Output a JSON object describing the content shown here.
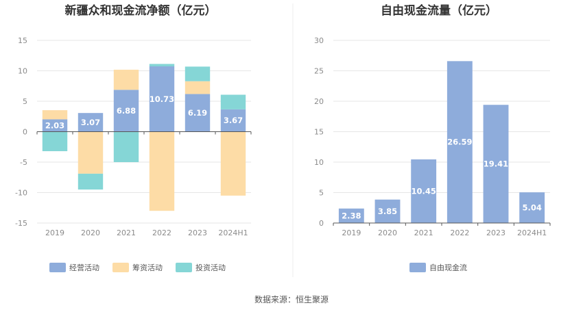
{
  "source": "数据来源：恒生聚源",
  "chart_data": [
    {
      "type": "bar",
      "stacked": true,
      "title": "新疆众和现金流净额（亿元）",
      "categories": [
        "2019",
        "2020",
        "2021",
        "2022",
        "2023",
        "2024H1"
      ],
      "ylim": [
        -15,
        15
      ],
      "yticks": [
        15,
        10,
        5,
        0,
        -5,
        -10,
        -15
      ],
      "legend_position": "bottom",
      "colors": {
        "经营活动": "#8eacdb",
        "筹资活动": "#fddca6",
        "投资活动": "#85d6d6"
      },
      "series": [
        {
          "name": "经营活动",
          "values": [
            2.03,
            3.07,
            6.88,
            10.73,
            6.19,
            3.67
          ],
          "labels": [
            "2.03",
            "3.07",
            "6.88",
            "10.73",
            "6.19",
            "3.67"
          ]
        },
        {
          "name": "筹资活动",
          "values": [
            1.5,
            -6.9,
            3.3,
            -13.0,
            2.1,
            -10.5
          ]
        },
        {
          "name": "投资活动",
          "values": [
            -3.2,
            -2.6,
            -5.0,
            0.4,
            2.4,
            2.4
          ]
        }
      ]
    },
    {
      "type": "bar",
      "title": "自由现金流量（亿元）",
      "categories": [
        "2019",
        "2020",
        "2021",
        "2022",
        "2023",
        "2024H1"
      ],
      "ylim": [
        0,
        30
      ],
      "yticks": [
        30,
        25,
        20,
        15,
        10,
        5,
        0
      ],
      "legend_position": "bottom",
      "colors": {
        "自由现金流": "#8eacdb"
      },
      "series": [
        {
          "name": "自由现金流",
          "values": [
            2.38,
            3.85,
            10.45,
            26.59,
            19.41,
            5.04
          ],
          "labels": [
            "2.38",
            "3.85",
            "10.45",
            "26.59",
            "19.41",
            "5.04"
          ]
        }
      ]
    }
  ]
}
